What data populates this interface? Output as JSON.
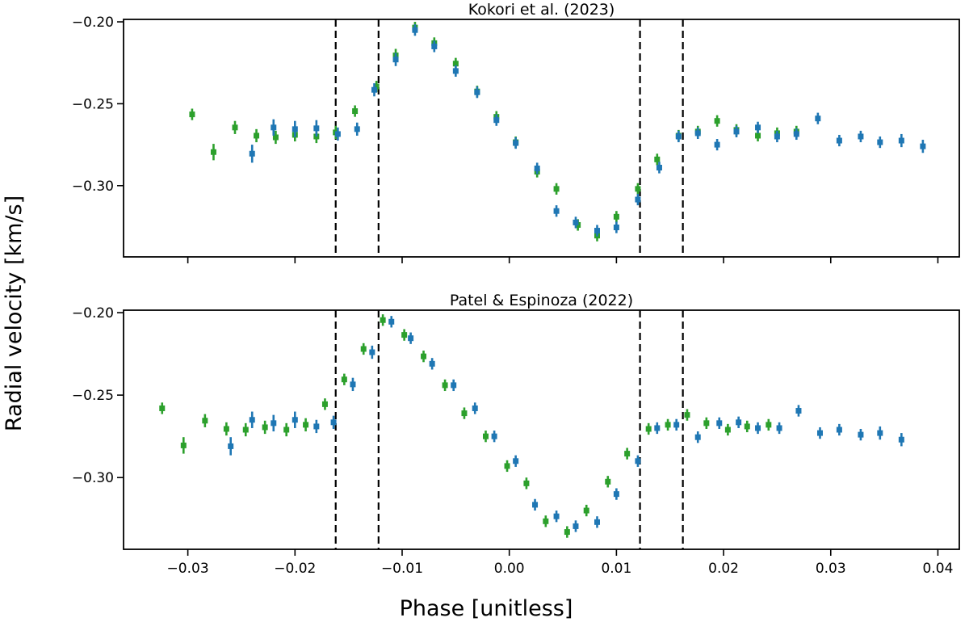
{
  "chart_data": {
    "type": "scatter",
    "shared_xlabel": "Phase [unitless]",
    "shared_ylabel": "Radial velocity [km/s]",
    "xlim": [
      -0.036,
      0.042
    ],
    "x_ticks": [
      -0.03,
      -0.02,
      -0.01,
      0.0,
      0.01,
      0.02,
      0.03,
      0.04
    ],
    "x_tick_labels": [
      "−0.03",
      "−0.02",
      "−0.01",
      "0.00",
      "0.01",
      "0.02",
      "0.03",
      "0.04"
    ],
    "ylim": [
      -0.3435,
      -0.1985
    ],
    "y_ticks": [
      -0.2,
      -0.25,
      -0.3
    ],
    "y_tick_labels": [
      "−0.20",
      "−0.25",
      "−0.30"
    ],
    "colors": {
      "green": "#2ca02c",
      "blue": "#1f77b4",
      "reference_line": "#000000"
    },
    "panels": [
      {
        "title": "Kokori et al. (2023)",
        "vlines": [
          -0.0162,
          -0.0122,
          0.0122,
          0.0162
        ],
        "series": [
          {
            "name": "green",
            "color": "#2ca02c",
            "points": [
              [
                -0.0296,
                -0.2565,
                0.0035
              ],
              [
                -0.0276,
                -0.2795,
                0.005
              ],
              [
                -0.0256,
                -0.2645,
                0.004
              ],
              [
                -0.0236,
                -0.2695,
                0.004
              ],
              [
                -0.0218,
                -0.2705,
                0.004
              ],
              [
                -0.02,
                -0.269,
                0.004
              ],
              [
                -0.018,
                -0.27,
                0.004
              ],
              [
                -0.0162,
                -0.2675,
                0.004
              ],
              [
                -0.0144,
                -0.2545,
                0.0035
              ],
              [
                -0.0124,
                -0.2395,
                0.0035
              ],
              [
                -0.0106,
                -0.2205,
                0.004
              ],
              [
                -0.0088,
                -0.2035,
                0.0035
              ],
              [
                -0.007,
                -0.213,
                0.0035
              ],
              [
                -0.005,
                -0.2255,
                0.0035
              ],
              [
                -0.003,
                -0.2425,
                0.0035
              ],
              [
                -0.0012,
                -0.258,
                0.0035
              ],
              [
                0.0006,
                -0.2735,
                0.0035
              ],
              [
                0.0026,
                -0.2915,
                0.0035
              ],
              [
                0.0044,
                -0.302,
                0.0035
              ],
              [
                0.0064,
                -0.324,
                0.0035
              ],
              [
                0.0082,
                -0.3305,
                0.0035
              ],
              [
                0.01,
                -0.319,
                0.0035
              ],
              [
                0.012,
                -0.302,
                0.0035
              ],
              [
                0.0138,
                -0.284,
                0.0035
              ],
              [
                0.0158,
                -0.2695,
                0.0035
              ],
              [
                0.0176,
                -0.267,
                0.0035
              ],
              [
                0.0194,
                -0.2605,
                0.0035
              ],
              [
                0.0212,
                -0.266,
                0.0035
              ],
              [
                0.0232,
                -0.2695,
                0.0035
              ],
              [
                0.025,
                -0.268,
                0.0035
              ],
              [
                0.0268,
                -0.267,
                0.0035
              ]
            ]
          },
          {
            "name": "blue",
            "color": "#1f77b4",
            "points": [
              [
                -0.024,
                -0.2805,
                0.0055
              ],
              [
                -0.022,
                -0.2645,
                0.005
              ],
              [
                -0.02,
                -0.2655,
                0.005
              ],
              [
                -0.018,
                -0.265,
                0.005
              ],
              [
                -0.016,
                -0.2685,
                0.004
              ],
              [
                -0.0142,
                -0.2655,
                0.004
              ],
              [
                -0.0126,
                -0.2415,
                0.004
              ],
              [
                -0.0106,
                -0.223,
                0.004
              ],
              [
                -0.0088,
                -0.205,
                0.0035
              ],
              [
                -0.007,
                -0.215,
                0.0035
              ],
              [
                -0.005,
                -0.23,
                0.0035
              ],
              [
                -0.003,
                -0.243,
                0.0035
              ],
              [
                -0.0012,
                -0.26,
                0.0035
              ],
              [
                0.0006,
                -0.274,
                0.0035
              ],
              [
                0.0026,
                -0.2895,
                0.0035
              ],
              [
                0.0044,
                -0.3155,
                0.0035
              ],
              [
                0.0062,
                -0.3225,
                0.0035
              ],
              [
                0.0082,
                -0.3275,
                0.0035
              ],
              [
                0.01,
                -0.3255,
                0.0035
              ],
              [
                0.012,
                -0.3085,
                0.0035
              ],
              [
                0.014,
                -0.289,
                0.0035
              ],
              [
                0.0158,
                -0.27,
                0.0035
              ],
              [
                0.0176,
                -0.268,
                0.0035
              ],
              [
                0.0194,
                -0.275,
                0.0035
              ],
              [
                0.0212,
                -0.267,
                0.0035
              ],
              [
                0.0232,
                -0.2645,
                0.0035
              ],
              [
                0.025,
                -0.27,
                0.0035
              ],
              [
                0.0268,
                -0.2685,
                0.0035
              ],
              [
                0.0288,
                -0.259,
                0.0035
              ],
              [
                0.0308,
                -0.2725,
                0.0035
              ],
              [
                0.0328,
                -0.27,
                0.0035
              ],
              [
                0.0346,
                -0.2735,
                0.0035
              ],
              [
                0.0366,
                -0.2725,
                0.004
              ],
              [
                0.0386,
                -0.276,
                0.004
              ]
            ]
          }
        ]
      },
      {
        "title": "Patel & Espinoza (2022)",
        "vlines": [
          -0.0162,
          -0.0122,
          0.0122,
          0.0162
        ],
        "series": [
          {
            "name": "green",
            "color": "#2ca02c",
            "points": [
              [
                -0.0324,
                -0.258,
                0.0035
              ],
              [
                -0.0304,
                -0.2805,
                0.005
              ],
              [
                -0.0284,
                -0.2655,
                0.004
              ],
              [
                -0.0264,
                -0.2705,
                0.004
              ],
              [
                -0.0246,
                -0.271,
                0.004
              ],
              [
                -0.0228,
                -0.2695,
                0.004
              ],
              [
                -0.0208,
                -0.271,
                0.004
              ],
              [
                -0.019,
                -0.268,
                0.004
              ],
              [
                -0.0172,
                -0.2555,
                0.0035
              ],
              [
                -0.0154,
                -0.2405,
                0.0035
              ],
              [
                -0.0136,
                -0.222,
                0.0035
              ],
              [
                -0.0118,
                -0.2045,
                0.0035
              ],
              [
                -0.0098,
                -0.2135,
                0.0035
              ],
              [
                -0.008,
                -0.2265,
                0.0035
              ],
              [
                -0.006,
                -0.244,
                0.0035
              ],
              [
                -0.0042,
                -0.261,
                0.0035
              ],
              [
                -0.0022,
                -0.275,
                0.0035
              ],
              [
                -0.0002,
                -0.293,
                0.0035
              ],
              [
                0.0016,
                -0.3035,
                0.0035
              ],
              [
                0.0034,
                -0.3265,
                0.0035
              ],
              [
                0.0054,
                -0.333,
                0.0035
              ],
              [
                0.0072,
                -0.32,
                0.0035
              ],
              [
                0.0092,
                -0.3025,
                0.0035
              ],
              [
                0.011,
                -0.2855,
                0.0035
              ],
              [
                0.013,
                -0.2705,
                0.0035
              ],
              [
                0.0148,
                -0.268,
                0.0035
              ],
              [
                0.0166,
                -0.262,
                0.0035
              ],
              [
                0.0184,
                -0.267,
                0.0035
              ],
              [
                0.0204,
                -0.271,
                0.0035
              ],
              [
                0.0222,
                -0.269,
                0.0035
              ],
              [
                0.0242,
                -0.268,
                0.0035
              ]
            ]
          },
          {
            "name": "blue",
            "color": "#1f77b4",
            "points": [
              [
                -0.026,
                -0.281,
                0.0055
              ],
              [
                -0.024,
                -0.265,
                0.005
              ],
              [
                -0.022,
                -0.267,
                0.005
              ],
              [
                -0.02,
                -0.265,
                0.005
              ],
              [
                -0.018,
                -0.269,
                0.004
              ],
              [
                -0.0164,
                -0.2665,
                0.004
              ],
              [
                -0.0146,
                -0.2435,
                0.004
              ],
              [
                -0.0128,
                -0.224,
                0.004
              ],
              [
                -0.011,
                -0.2055,
                0.0035
              ],
              [
                -0.0092,
                -0.2155,
                0.0035
              ],
              [
                -0.0072,
                -0.231,
                0.0035
              ],
              [
                -0.0052,
                -0.244,
                0.0035
              ],
              [
                -0.0032,
                -0.258,
                0.0035
              ],
              [
                -0.0014,
                -0.275,
                0.0035
              ],
              [
                0.0006,
                -0.29,
                0.0035
              ],
              [
                0.0024,
                -0.3165,
                0.0035
              ],
              [
                0.0044,
                -0.3235,
                0.0035
              ],
              [
                0.0062,
                -0.3295,
                0.0035
              ],
              [
                0.0082,
                -0.327,
                0.0035
              ],
              [
                0.01,
                -0.31,
                0.0035
              ],
              [
                0.012,
                -0.29,
                0.0035
              ],
              [
                0.0138,
                -0.27,
                0.0035
              ],
              [
                0.0156,
                -0.268,
                0.0035
              ],
              [
                0.0176,
                -0.2755,
                0.0035
              ],
              [
                0.0196,
                -0.267,
                0.0035
              ],
              [
                0.0214,
                -0.2665,
                0.0035
              ],
              [
                0.0232,
                -0.27,
                0.0035
              ],
              [
                0.0252,
                -0.27,
                0.0035
              ],
              [
                0.027,
                -0.2595,
                0.0035
              ],
              [
                0.029,
                -0.273,
                0.0035
              ],
              [
                0.0308,
                -0.271,
                0.0035
              ],
              [
                0.0328,
                -0.274,
                0.0035
              ],
              [
                0.0346,
                -0.273,
                0.004
              ],
              [
                0.0366,
                -0.277,
                0.004
              ]
            ]
          }
        ]
      }
    ]
  }
}
